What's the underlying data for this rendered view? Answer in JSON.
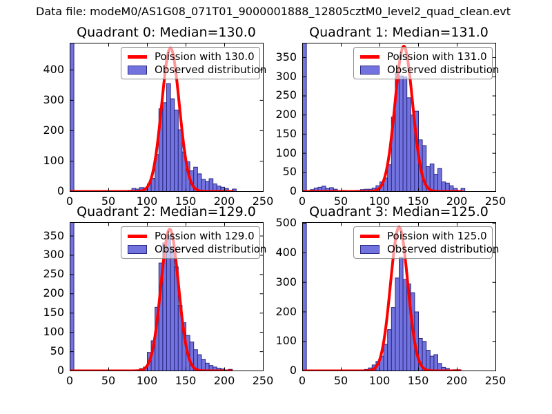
{
  "figure_title": "Data file: modeM0/AS1G08_071T01_9000001888_12805cztM0_level2_quad_clean.evt",
  "colors": {
    "background": "#FFFFFF",
    "bar_fill": "#7373E0",
    "bar_edge": "#26267F",
    "curve": "#FF0000",
    "axis": "#000000",
    "legend_border": "#8C8C8C",
    "text": "#000000"
  },
  "chart_data": [
    {
      "type": "bar",
      "subtype": "histogram_with_fit_curve",
      "title": "Quadrant 0: Median=130.0",
      "median": 130.0,
      "legend_labels": [
        "Poission with 130.0",
        "Observed distribution"
      ],
      "legend_position": "upper right",
      "grid": false,
      "xlabel": "",
      "ylabel": "",
      "xlim": [
        0,
        250
      ],
      "ylim": [
        0,
        488
      ],
      "xticks": [
        0,
        50,
        100,
        150,
        200,
        250
      ],
      "yticks": [
        0,
        100,
        200,
        300,
        400
      ],
      "bin_width": 5,
      "zero_bin": {
        "x": 0,
        "clipped_at_top": true
      },
      "bars": [
        [
          75,
          4
        ],
        [
          80,
          10
        ],
        [
          85,
          8
        ],
        [
          90,
          13
        ],
        [
          95,
          12
        ],
        [
          100,
          25
        ],
        [
          105,
          43
        ],
        [
          110,
          122
        ],
        [
          115,
          272
        ],
        [
          120,
          292
        ],
        [
          125,
          355
        ],
        [
          130,
          305
        ],
        [
          135,
          268
        ],
        [
          140,
          203
        ],
        [
          145,
          130
        ],
        [
          150,
          98
        ],
        [
          155,
          68
        ],
        [
          160,
          80
        ],
        [
          165,
          58
        ],
        [
          170,
          40
        ],
        [
          175,
          33
        ],
        [
          180,
          42
        ],
        [
          185,
          25
        ],
        [
          190,
          18
        ],
        [
          195,
          14
        ],
        [
          200,
          10
        ],
        [
          210,
          8
        ]
      ],
      "poisson_curve": {
        "mu": 130.0,
        "peak": 472,
        "x_start": 0,
        "x_end": 212
      }
    },
    {
      "type": "bar",
      "subtype": "histogram_with_fit_curve",
      "title": "Quadrant 1: Median=131.0",
      "median": 131.0,
      "legend_labels": [
        "Poission with 131.0",
        "Observed distribution"
      ],
      "legend_position": "upper right",
      "grid": false,
      "xlabel": "",
      "ylabel": "",
      "xlim": [
        0,
        250
      ],
      "ylim": [
        0,
        388
      ],
      "xticks": [
        0,
        50,
        100,
        150,
        200,
        250
      ],
      "yticks": [
        0,
        50,
        100,
        150,
        200,
        250,
        300,
        350
      ],
      "bin_width": 5,
      "zero_bin": {
        "x": 0,
        "clipped_at_top": true
      },
      "bars": [
        [
          10,
          5
        ],
        [
          15,
          9
        ],
        [
          20,
          11
        ],
        [
          25,
          14
        ],
        [
          30,
          8
        ],
        [
          35,
          10
        ],
        [
          40,
          6
        ],
        [
          50,
          3
        ],
        [
          55,
          2
        ],
        [
          70,
          3
        ],
        [
          75,
          5
        ],
        [
          80,
          6
        ],
        [
          85,
          6
        ],
        [
          90,
          9
        ],
        [
          95,
          15
        ],
        [
          100,
          25
        ],
        [
          105,
          35
        ],
        [
          110,
          70
        ],
        [
          115,
          195
        ],
        [
          120,
          312
        ],
        [
          125,
          302
        ],
        [
          130,
          300
        ],
        [
          135,
          245
        ],
        [
          140,
          200
        ],
        [
          145,
          210
        ],
        [
          150,
          135
        ],
        [
          155,
          120
        ],
        [
          160,
          65
        ],
        [
          165,
          72
        ],
        [
          170,
          45
        ],
        [
          175,
          60
        ],
        [
          180,
          25
        ],
        [
          185,
          22
        ],
        [
          190,
          15
        ],
        [
          195,
          8
        ],
        [
          205,
          8
        ]
      ],
      "poisson_curve": {
        "mu": 131.0,
        "peak": 380,
        "x_start": 0,
        "x_end": 207
      }
    },
    {
      "type": "bar",
      "subtype": "histogram_with_fit_curve",
      "title": "Quadrant 2: Median=129.0",
      "median": 129.0,
      "legend_labels": [
        "Poission with 129.0",
        "Observed distribution"
      ],
      "legend_position": "upper right",
      "grid": false,
      "xlabel": "",
      "ylabel": "",
      "xlim": [
        0,
        250
      ],
      "ylim": [
        0,
        385
      ],
      "xticks": [
        0,
        50,
        100,
        150,
        200,
        250
      ],
      "yticks": [
        0,
        50,
        100,
        150,
        200,
        250,
        300,
        350
      ],
      "bin_width": 5,
      "zero_bin": {
        "x": 0,
        "clipped_at_top": true
      },
      "bars": [
        [
          90,
          6
        ],
        [
          95,
          10
        ],
        [
          100,
          48
        ],
        [
          105,
          78
        ],
        [
          110,
          165
        ],
        [
          115,
          280
        ],
        [
          120,
          332
        ],
        [
          125,
          350
        ],
        [
          130,
          318
        ],
        [
          135,
          270
        ],
        [
          140,
          170
        ],
        [
          145,
          125
        ],
        [
          150,
          92
        ],
        [
          155,
          75
        ],
        [
          160,
          55
        ],
        [
          165,
          42
        ],
        [
          170,
          30
        ],
        [
          175,
          20
        ],
        [
          180,
          14
        ],
        [
          185,
          10
        ],
        [
          190,
          7
        ],
        [
          195,
          5
        ],
        [
          205,
          4
        ]
      ],
      "poisson_curve": {
        "mu": 129.0,
        "peak": 368,
        "x_start": 0,
        "x_end": 210
      }
    },
    {
      "type": "bar",
      "subtype": "histogram_with_fit_curve",
      "title": "Quadrant 3: Median=125.0",
      "median": 125.0,
      "legend_labels": [
        "Poission with 125.0",
        "Observed distribution"
      ],
      "legend_position": "upper right",
      "grid": false,
      "xlabel": "",
      "ylabel": "",
      "xlim": [
        0,
        250
      ],
      "ylim": [
        0,
        503
      ],
      "xticks": [
        0,
        50,
        100,
        150,
        200,
        250
      ],
      "yticks": [
        0,
        100,
        200,
        300,
        400,
        500
      ],
      "bin_width": 5,
      "zero_bin": {
        "x": 0,
        "clipped_at_top": true
      },
      "bars": [
        [
          80,
          5
        ],
        [
          85,
          10
        ],
        [
          90,
          20
        ],
        [
          95,
          32
        ],
        [
          100,
          50
        ],
        [
          105,
          90
        ],
        [
          110,
          140
        ],
        [
          115,
          215
        ],
        [
          120,
          315
        ],
        [
          125,
          385
        ],
        [
          130,
          310
        ],
        [
          135,
          295
        ],
        [
          140,
          265
        ],
        [
          145,
          200
        ],
        [
          150,
          110
        ],
        [
          155,
          100
        ],
        [
          160,
          70
        ],
        [
          165,
          50
        ],
        [
          170,
          55
        ],
        [
          175,
          25
        ],
        [
          180,
          12
        ],
        [
          185,
          8
        ],
        [
          195,
          4
        ],
        [
          200,
          4
        ]
      ],
      "poisson_curve": {
        "mu": 125.0,
        "peak": 488,
        "x_start": 0,
        "x_end": 205
      }
    }
  ]
}
